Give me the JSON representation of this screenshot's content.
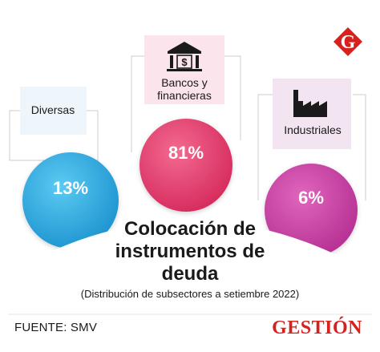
{
  "chart_data": {
    "type": "pie",
    "title": "Colocación de instrumentos de deuda",
    "subtitle": "(Distribución de subsectores a setiembre 2022)",
    "categories": [
      "Diversas",
      "Bancos y financieras",
      "Industriales"
    ],
    "values": [
      13,
      81,
      6
    ],
    "value_labels": [
      "13%",
      "81%",
      "6%"
    ],
    "colors": [
      "#2aa7dc",
      "#e0386a",
      "#c23a9c"
    ],
    "source": "FUENTE: SMV"
  },
  "labels": {
    "title_line1": "Colocación de",
    "title_line2": "instrumentos de",
    "title_line3": "deuda"
  },
  "icons": {
    "diversas": "none",
    "bancos": "bank-icon",
    "industriales": "factory-icon"
  },
  "brand": {
    "logo_letter": "G",
    "wordmark": "GESTIÓN",
    "color": "#d6211f"
  }
}
